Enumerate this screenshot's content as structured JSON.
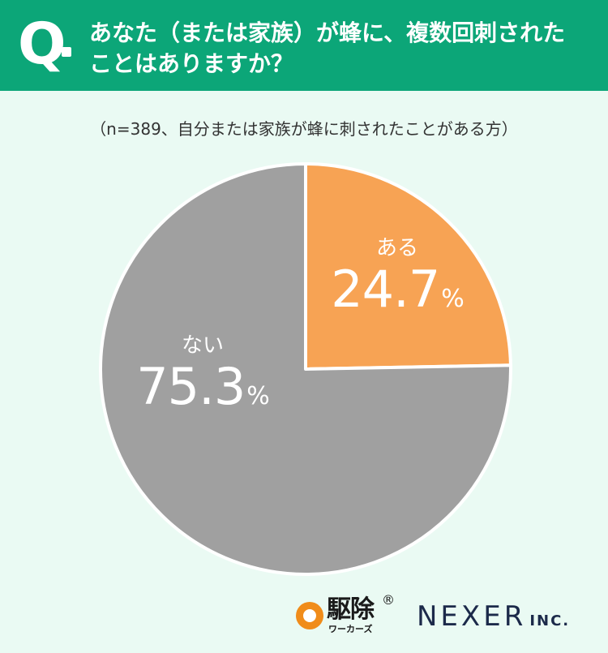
{
  "header": {
    "q_mark": "Q",
    "question": "あなた（または家族）が蜂に、複数回刺された\nことはありますか？"
  },
  "subtitle": "（n=389、自分または家族が蜂に刺されたことがある方）",
  "chart_data": {
    "type": "pie",
    "slices": [
      {
        "name": "ある",
        "value": 24.7,
        "color": "#f7a354"
      },
      {
        "name": "ない",
        "value": 75.3,
        "color": "#a0a0a0"
      }
    ],
    "value_unit": "%",
    "start_angle": "12-o'clock",
    "direction": "clockwise"
  },
  "footer": {
    "logo1_name": "駆除",
    "logo1_sub": "ワーカーズ",
    "logo1_mark": "®",
    "logo2_name": "NEXER",
    "logo2_suffix": "INC."
  }
}
